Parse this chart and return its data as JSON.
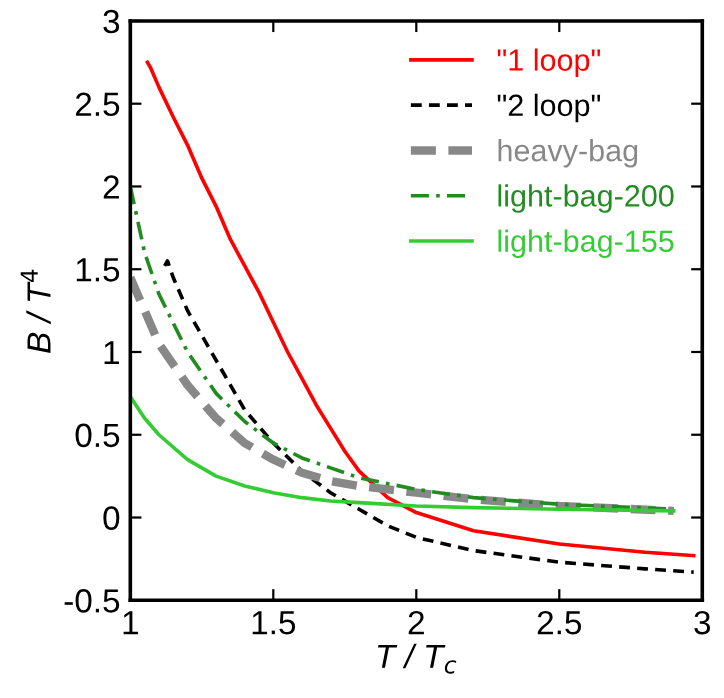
{
  "chart_data": {
    "type": "line",
    "xlabel": "T / T$_{c}$",
    "ylabel": "B / T$^{4}$",
    "xlim": [
      1,
      3
    ],
    "ylim": [
      -0.5,
      3
    ],
    "xticks": [
      1,
      1.5,
      2,
      2.5,
      3
    ],
    "yticks": [
      {
        "value": -0.5,
        "label": "-0.5"
      },
      0,
      0.5,
      1,
      1.5,
      2,
      2.5,
      3
    ],
    "legend": "top right",
    "grid": false,
    "series": [
      {
        "name": "\"1 loop\"",
        "color": "#ff0000",
        "line_style": "solid",
        "x": [
          1.06,
          1.07,
          1.1,
          1.15,
          1.2,
          1.25,
          1.3,
          1.35,
          1.4,
          1.45,
          1.5,
          1.55,
          1.6,
          1.65,
          1.7,
          1.75,
          1.8,
          1.9,
          2.0,
          2.2,
          2.5,
          2.8,
          2.97
        ],
        "values": [
          2.75,
          2.72,
          2.6,
          2.42,
          2.25,
          2.05,
          1.88,
          1.68,
          1.52,
          1.36,
          1.18,
          1.0,
          0.84,
          0.68,
          0.54,
          0.4,
          0.28,
          0.12,
          0.03,
          -0.08,
          -0.16,
          -0.21,
          -0.23
        ]
      },
      {
        "name": "\"2 loop\"",
        "color": "#000000",
        "line_style": "dashed",
        "x": [
          1.12,
          1.13,
          1.15,
          1.2,
          1.3,
          1.4,
          1.5,
          1.6,
          1.7,
          1.8,
          1.9,
          2.0,
          2.2,
          2.5,
          2.8,
          2.97
        ],
        "values": [
          1.52,
          1.55,
          1.45,
          1.25,
          0.95,
          0.65,
          0.45,
          0.28,
          0.15,
          0.05,
          -0.05,
          -0.12,
          -0.2,
          -0.27,
          -0.31,
          -0.33
        ]
      },
      {
        "name": "heavy-bag",
        "color": "#888888",
        "line_style": "heavy",
        "x": [
          1.0,
          1.05,
          1.1,
          1.2,
          1.3,
          1.4,
          1.5,
          1.6,
          1.7,
          1.8,
          2.0,
          2.2,
          2.5,
          2.9
        ],
        "values": [
          1.45,
          1.25,
          1.05,
          0.8,
          0.6,
          0.45,
          0.35,
          0.27,
          0.22,
          0.19,
          0.15,
          0.11,
          0.07,
          0.04
        ]
      },
      {
        "name": "light-bag-200",
        "color": "#228b22",
        "line_style": "dashdot",
        "x": [
          1.0,
          1.05,
          1.1,
          1.2,
          1.3,
          1.4,
          1.5,
          1.6,
          1.7,
          1.8,
          2.0,
          2.2,
          2.5,
          2.9
        ],
        "values": [
          2.0,
          1.6,
          1.35,
          1.0,
          0.75,
          0.58,
          0.45,
          0.36,
          0.3,
          0.24,
          0.17,
          0.12,
          0.08,
          0.05
        ]
      },
      {
        "name": "light-bag-155",
        "color": "#33cc33",
        "line_style": "solid",
        "x": [
          1.0,
          1.05,
          1.1,
          1.2,
          1.3,
          1.4,
          1.5,
          1.6,
          1.7,
          1.8,
          2.0,
          2.2,
          2.5,
          2.9
        ],
        "values": [
          0.73,
          0.6,
          0.5,
          0.35,
          0.25,
          0.19,
          0.15,
          0.12,
          0.1,
          0.09,
          0.07,
          0.06,
          0.05,
          0.04
        ]
      }
    ]
  }
}
